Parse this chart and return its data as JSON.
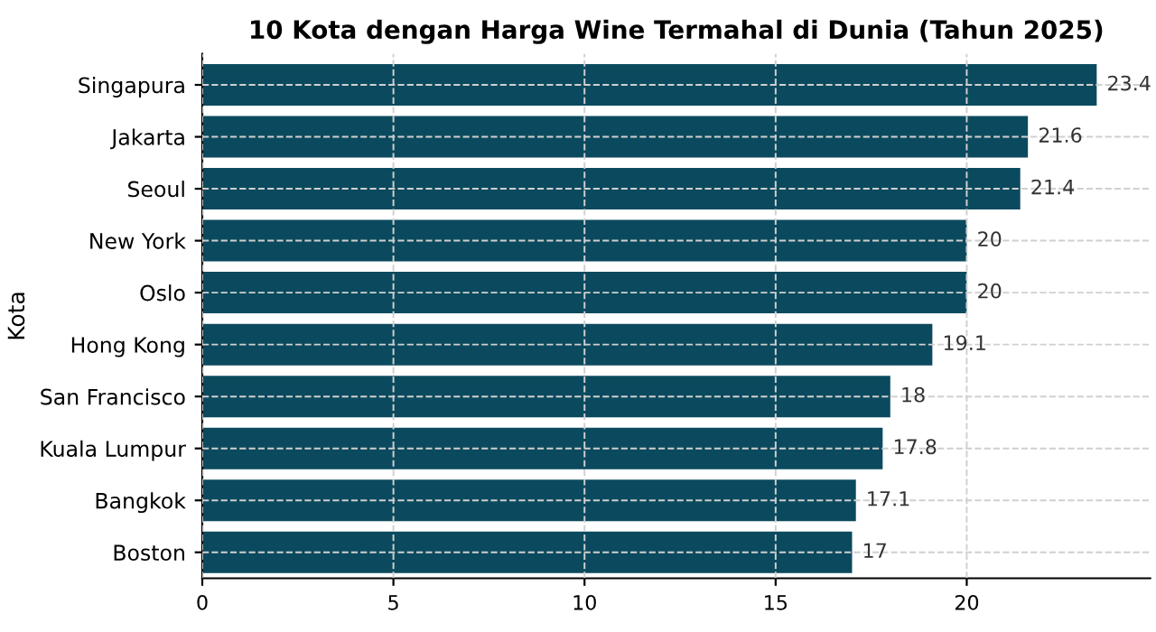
{
  "chart_data": {
    "type": "bar",
    "orientation": "horizontal",
    "title": "10 Kota dengan Harga Wine Termahal di Dunia (Tahun 2025)",
    "ylabel": "Kota",
    "categories": [
      "Singapura",
      "Jakarta",
      "Seoul",
      "New York",
      "Oslo",
      "Hong Kong",
      "San Francisco",
      "Kuala Lumpur",
      "Bangkok",
      "Boston"
    ],
    "values": [
      23.4,
      21.6,
      21.4,
      20,
      20,
      19.1,
      18,
      17.8,
      17.1,
      17
    ],
    "color": "#0b4a5e",
    "xlim": [
      0,
      24.8
    ],
    "xticks": [
      0,
      5,
      10,
      15,
      20
    ],
    "grid": true,
    "line_style": "dashed",
    "data_labels": true
  }
}
